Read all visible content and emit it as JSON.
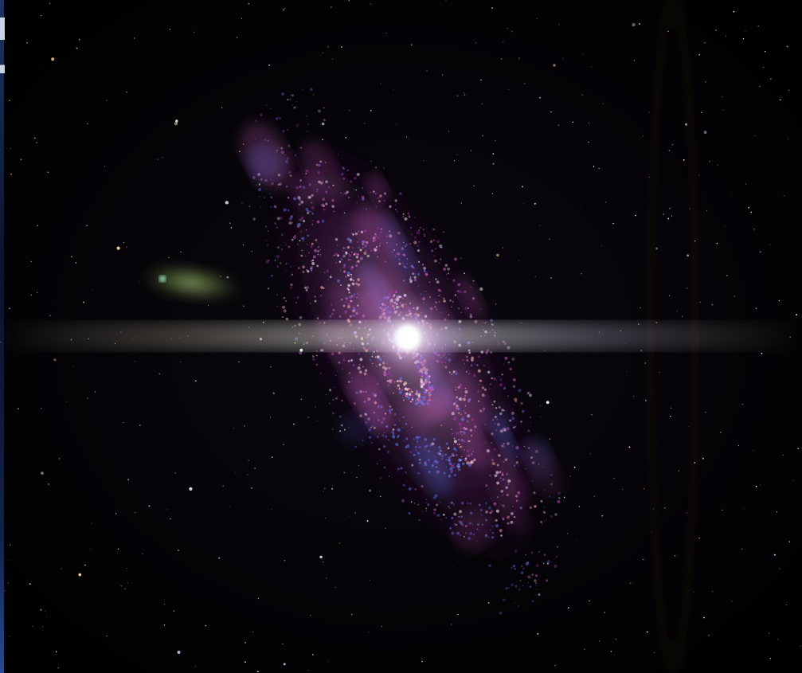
{
  "scene": {
    "subject": "spiral-galaxy",
    "palette": {
      "space": "#000000",
      "core": "#ffffff",
      "arm_pink": "#c060b8",
      "arm_magenta": "#8a2c8c",
      "arm_blue": "#5a6ad8",
      "arm_peach": "#e8a8a0",
      "comet_green": "#8ab858",
      "flare": "#d8d0c8"
    }
  }
}
